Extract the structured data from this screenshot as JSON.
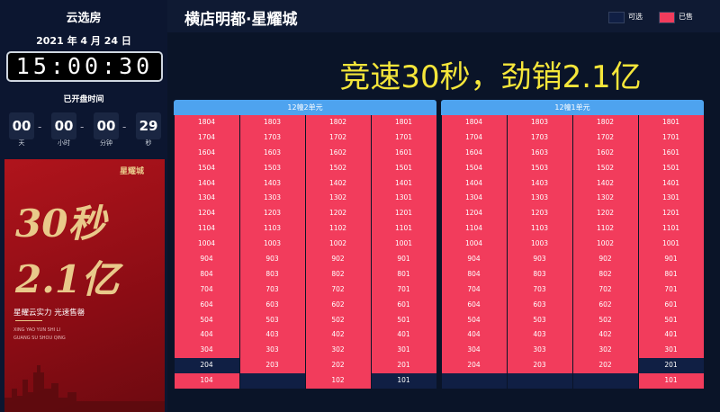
{
  "sidebar": {
    "app_title": "云选房",
    "date": "2021 年 4 月 24 日",
    "clock": "15:00:30",
    "elapsed_label": "已开盘时间",
    "timer": [
      {
        "value": "00",
        "unit": "天"
      },
      {
        "value": "00",
        "unit": "小时"
      },
      {
        "value": "00",
        "unit": "分钟"
      },
      {
        "value": "29",
        "unit": "秒"
      }
    ],
    "poster": {
      "brand": "星耀城",
      "headline_1": "30秒",
      "headline_2": "2.1亿",
      "slogan": "星耀云实力 光速售罄",
      "pinyin_1": "XING YAO YUN SHI LI",
      "pinyin_2": "GUANG SU SHOU QING"
    }
  },
  "header": {
    "title": "横店明都·星耀城",
    "legend": [
      {
        "status": "available",
        "label": "可选",
        "color": "#101f44"
      },
      {
        "status": "sold",
        "label": "已售",
        "color": "#f23c5c"
      }
    ]
  },
  "banner": "竞速30秒，劲销2.1亿",
  "buildings": [
    {
      "name": "12幢2单元",
      "rows": [
        [
          {
            "label": "1804",
            "status": "sold"
          },
          {
            "label": "1803",
            "status": "sold"
          },
          {
            "label": "1802",
            "status": "sold"
          },
          {
            "label": "1801",
            "status": "sold"
          }
        ],
        [
          {
            "label": "1704",
            "status": "sold"
          },
          {
            "label": "1703",
            "status": "sold"
          },
          {
            "label": "1702",
            "status": "sold"
          },
          {
            "label": "1701",
            "status": "sold"
          }
        ],
        [
          {
            "label": "1604",
            "status": "sold"
          },
          {
            "label": "1603",
            "status": "sold"
          },
          {
            "label": "1602",
            "status": "sold"
          },
          {
            "label": "1601",
            "status": "sold"
          }
        ],
        [
          {
            "label": "1504",
            "status": "sold"
          },
          {
            "label": "1503",
            "status": "sold"
          },
          {
            "label": "1502",
            "status": "sold"
          },
          {
            "label": "1501",
            "status": "sold"
          }
        ],
        [
          {
            "label": "1404",
            "status": "sold"
          },
          {
            "label": "1403",
            "status": "sold"
          },
          {
            "label": "1402",
            "status": "sold"
          },
          {
            "label": "1401",
            "status": "sold"
          }
        ],
        [
          {
            "label": "1304",
            "status": "sold"
          },
          {
            "label": "1303",
            "status": "sold"
          },
          {
            "label": "1302",
            "status": "sold"
          },
          {
            "label": "1301",
            "status": "sold"
          }
        ],
        [
          {
            "label": "1204",
            "status": "sold"
          },
          {
            "label": "1203",
            "status": "sold"
          },
          {
            "label": "1202",
            "status": "sold"
          },
          {
            "label": "1201",
            "status": "sold"
          }
        ],
        [
          {
            "label": "1104",
            "status": "sold"
          },
          {
            "label": "1103",
            "status": "sold"
          },
          {
            "label": "1102",
            "status": "sold"
          },
          {
            "label": "1101",
            "status": "sold"
          }
        ],
        [
          {
            "label": "1004",
            "status": "sold"
          },
          {
            "label": "1003",
            "status": "sold"
          },
          {
            "label": "1002",
            "status": "sold"
          },
          {
            "label": "1001",
            "status": "sold"
          }
        ],
        [
          {
            "label": "904",
            "status": "sold"
          },
          {
            "label": "903",
            "status": "sold"
          },
          {
            "label": "902",
            "status": "sold"
          },
          {
            "label": "901",
            "status": "sold"
          }
        ],
        [
          {
            "label": "804",
            "status": "sold"
          },
          {
            "label": "803",
            "status": "sold"
          },
          {
            "label": "802",
            "status": "sold"
          },
          {
            "label": "801",
            "status": "sold"
          }
        ],
        [
          {
            "label": "704",
            "status": "sold"
          },
          {
            "label": "703",
            "status": "sold"
          },
          {
            "label": "702",
            "status": "sold"
          },
          {
            "label": "701",
            "status": "sold"
          }
        ],
        [
          {
            "label": "604",
            "status": "sold"
          },
          {
            "label": "603",
            "status": "sold"
          },
          {
            "label": "602",
            "status": "sold"
          },
          {
            "label": "601",
            "status": "sold"
          }
        ],
        [
          {
            "label": "504",
            "status": "sold"
          },
          {
            "label": "503",
            "status": "sold"
          },
          {
            "label": "502",
            "status": "sold"
          },
          {
            "label": "501",
            "status": "sold"
          }
        ],
        [
          {
            "label": "404",
            "status": "sold"
          },
          {
            "label": "403",
            "status": "sold"
          },
          {
            "label": "402",
            "status": "sold"
          },
          {
            "label": "401",
            "status": "sold"
          }
        ],
        [
          {
            "label": "304",
            "status": "sold"
          },
          {
            "label": "303",
            "status": "sold"
          },
          {
            "label": "302",
            "status": "sold"
          },
          {
            "label": "301",
            "status": "sold"
          }
        ],
        [
          {
            "label": "204",
            "status": "available"
          },
          {
            "label": "203",
            "status": "sold"
          },
          {
            "label": "202",
            "status": "sold"
          },
          {
            "label": "201",
            "status": "sold"
          }
        ],
        [
          {
            "label": "104",
            "status": "sold"
          },
          {
            "status": "available"
          },
          {
            "label": "102",
            "status": "sold"
          },
          {
            "label": "101",
            "status": "available"
          }
        ]
      ]
    },
    {
      "name": "12幢1单元",
      "rows": [
        [
          {
            "label": "1804",
            "status": "sold"
          },
          {
            "label": "1803",
            "status": "sold"
          },
          {
            "label": "1802",
            "status": "sold"
          },
          {
            "label": "1801",
            "status": "sold"
          }
        ],
        [
          {
            "label": "1704",
            "status": "sold"
          },
          {
            "label": "1703",
            "status": "sold"
          },
          {
            "label": "1702",
            "status": "sold"
          },
          {
            "label": "1701",
            "status": "sold"
          }
        ],
        [
          {
            "label": "1604",
            "status": "sold"
          },
          {
            "label": "1603",
            "status": "sold"
          },
          {
            "label": "1602",
            "status": "sold"
          },
          {
            "label": "1601",
            "status": "sold"
          }
        ],
        [
          {
            "label": "1504",
            "status": "sold"
          },
          {
            "label": "1503",
            "status": "sold"
          },
          {
            "label": "1502",
            "status": "sold"
          },
          {
            "label": "1501",
            "status": "sold"
          }
        ],
        [
          {
            "label": "1404",
            "status": "sold"
          },
          {
            "label": "1403",
            "status": "sold"
          },
          {
            "label": "1402",
            "status": "sold"
          },
          {
            "label": "1401",
            "status": "sold"
          }
        ],
        [
          {
            "label": "1304",
            "status": "sold"
          },
          {
            "label": "1303",
            "status": "sold"
          },
          {
            "label": "1302",
            "status": "sold"
          },
          {
            "label": "1301",
            "status": "sold"
          }
        ],
        [
          {
            "label": "1204",
            "status": "sold"
          },
          {
            "label": "1203",
            "status": "sold"
          },
          {
            "label": "1202",
            "status": "sold"
          },
          {
            "label": "1201",
            "status": "sold"
          }
        ],
        [
          {
            "label": "1104",
            "status": "sold"
          },
          {
            "label": "1103",
            "status": "sold"
          },
          {
            "label": "1102",
            "status": "sold"
          },
          {
            "label": "1101",
            "status": "sold"
          }
        ],
        [
          {
            "label": "1004",
            "status": "sold"
          },
          {
            "label": "1003",
            "status": "sold"
          },
          {
            "label": "1002",
            "status": "sold"
          },
          {
            "label": "1001",
            "status": "sold"
          }
        ],
        [
          {
            "label": "904",
            "status": "sold"
          },
          {
            "label": "903",
            "status": "sold"
          },
          {
            "label": "902",
            "status": "sold"
          },
          {
            "label": "901",
            "status": "sold"
          }
        ],
        [
          {
            "label": "804",
            "status": "sold"
          },
          {
            "label": "803",
            "status": "sold"
          },
          {
            "label": "802",
            "status": "sold"
          },
          {
            "label": "801",
            "status": "sold"
          }
        ],
        [
          {
            "label": "704",
            "status": "sold"
          },
          {
            "label": "703",
            "status": "sold"
          },
          {
            "label": "702",
            "status": "sold"
          },
          {
            "label": "701",
            "status": "sold"
          }
        ],
        [
          {
            "label": "604",
            "status": "sold"
          },
          {
            "label": "603",
            "status": "sold"
          },
          {
            "label": "602",
            "status": "sold"
          },
          {
            "label": "601",
            "status": "sold"
          }
        ],
        [
          {
            "label": "504",
            "status": "sold"
          },
          {
            "label": "503",
            "status": "sold"
          },
          {
            "label": "502",
            "status": "sold"
          },
          {
            "label": "501",
            "status": "sold"
          }
        ],
        [
          {
            "label": "404",
            "status": "sold"
          },
          {
            "label": "403",
            "status": "sold"
          },
          {
            "label": "402",
            "status": "sold"
          },
          {
            "label": "401",
            "status": "sold"
          }
        ],
        [
          {
            "label": "304",
            "status": "sold"
          },
          {
            "label": "303",
            "status": "sold"
          },
          {
            "label": "302",
            "status": "sold"
          },
          {
            "label": "301",
            "status": "sold"
          }
        ],
        [
          {
            "label": "204",
            "status": "sold"
          },
          {
            "label": "203",
            "status": "sold"
          },
          {
            "label": "202",
            "status": "sold"
          },
          {
            "label": "201",
            "status": "available"
          }
        ],
        [
          {
            "status": "available"
          },
          {
            "status": "available"
          },
          {
            "status": "available"
          },
          {
            "label": "101",
            "status": "sold"
          }
        ]
      ]
    }
  ]
}
